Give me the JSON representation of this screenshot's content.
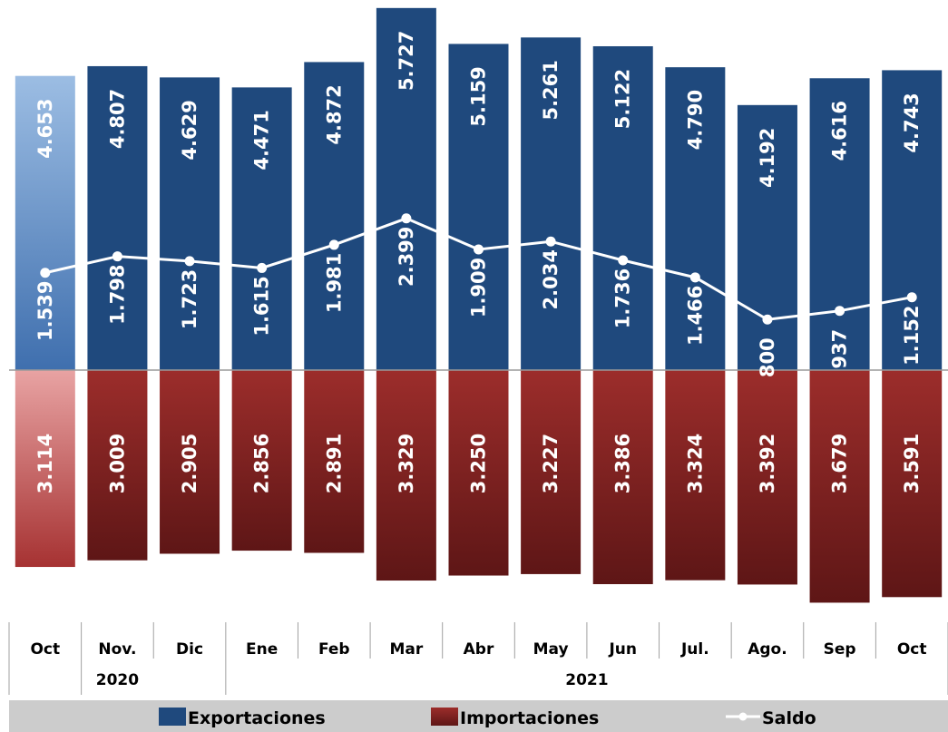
{
  "chart_data": {
    "type": "bar",
    "categories": [
      "Oct",
      "Nov.",
      "Dic",
      "Ene",
      "Feb",
      "Mar",
      "Abr",
      "May",
      "Jun",
      "Jul.",
      "Ago.",
      "Sep",
      "Oct"
    ],
    "years": [
      {
        "label": "2020",
        "from": 0,
        "to": 2
      },
      {
        "label": "2021",
        "from": 3,
        "to": 12
      }
    ],
    "series": [
      {
        "name": "Exportaciones",
        "values": [
          4653,
          4807,
          4629,
          4471,
          4872,
          5727,
          5159,
          5261,
          5122,
          4790,
          4192,
          4616,
          4743
        ],
        "labels": [
          "4.653",
          "4.807",
          "4.629",
          "4.471",
          "4.872",
          "5.727",
          "5.159",
          "5.261",
          "5.122",
          "4.790",
          "4.192",
          "4.616",
          "4.743"
        ]
      },
      {
        "name": "Importaciones",
        "values": [
          3114,
          3009,
          2905,
          2856,
          2891,
          3329,
          3250,
          3227,
          3386,
          3324,
          3392,
          3679,
          3591
        ],
        "labels": [
          "3.114",
          "3.009",
          "2.905",
          "2.856",
          "2.891",
          "3.329",
          "3.250",
          "3.227",
          "3.386",
          "3.324",
          "3.392",
          "3.679",
          "3.591"
        ]
      },
      {
        "name": "Saldo",
        "values": [
          1539,
          1798,
          1723,
          1615,
          1981,
          2399,
          1909,
          2034,
          1736,
          1466,
          800,
          937,
          1152
        ],
        "labels": [
          "1.539",
          "1.798",
          "1.723",
          "1.615",
          "1.981",
          "2.399",
          "1.909",
          "2.034",
          "1.736",
          "1.466",
          "800",
          "937",
          "1.152"
        ]
      }
    ],
    "legend": {
      "position": "bottom",
      "items": [
        "Exportaciones",
        "Importaciones",
        "Saldo"
      ]
    },
    "colors": {
      "exports": "#1f497d",
      "exports_highlight": "#6b99cf",
      "imports": "#8b2727",
      "imports_highlight": "#d98a8a",
      "saldo_line": "#ffffff",
      "legend_band": "#cccccc"
    },
    "grid": false
  }
}
